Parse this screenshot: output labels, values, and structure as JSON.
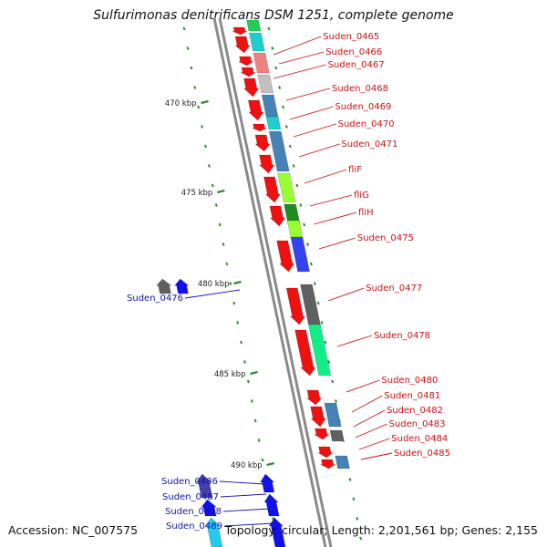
{
  "title": "Sulfurimonas denitrificans DSM 1251, complete genome",
  "accession": "Accession: NC_007575",
  "topology": "Topology: circular; Length: 2,201,561 bp; Genes: 2,155",
  "colors": {
    "forward_strand": "#ee1111",
    "reverse_strand": "#1111ee",
    "forward_label": "#cc1111",
    "reverse_label": "#1111aa",
    "backbone": "#8a8a8a",
    "tick": "#2e8b2e"
  },
  "ticks": [
    "470 kbp",
    "475 kbp",
    "480 kbp",
    "485 kbp",
    "490 kbp"
  ],
  "forward_genes": [
    "Suden_0465",
    "Suden_0466",
    "Suden_0467",
    "Suden_0468",
    "Suden_0469",
    "Suden_0470",
    "Suden_0471",
    "fliF",
    "fliG",
    "fliH",
    "Suden_0475",
    "Suden_0477",
    "Suden_0478",
    "Suden_0480",
    "Suden_0481",
    "Suden_0482",
    "Suden_0483",
    "Suden_0484",
    "Suden_0485"
  ],
  "reverse_genes": [
    "Suden_0476",
    "Suden_0486",
    "Suden_0487",
    "Suden_0488",
    "Suden_0489"
  ]
}
